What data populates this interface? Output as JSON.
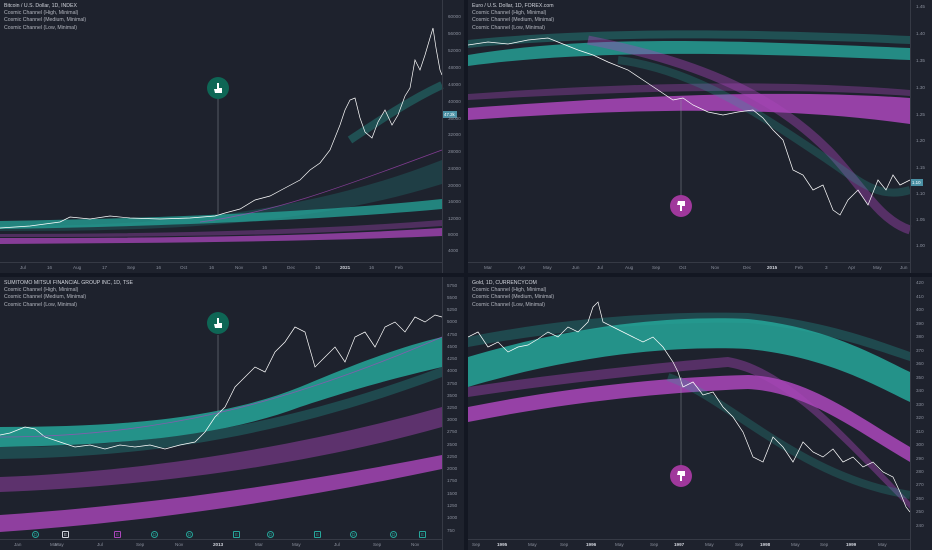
{
  "colors": {
    "bg": "#131722",
    "panel": "#1e222d",
    "teal": "#26a69a",
    "purple": "#ab47bc",
    "price": "#ffffff",
    "hand_up": "#0e6655",
    "hand_down": "#a0389c"
  },
  "panels": [
    {
      "legend": {
        "title": "Bitcoin / U.S. Dollar, 1D, INDEX",
        "lines": [
          "Cosmic Channel (High, Minimal)",
          "Cosmic Channel (Medium, Minimal)",
          "Cosmic Channel (Low, Minimal)"
        ]
      },
      "price_ticks": [
        "60000",
        "56000",
        "52000",
        "48000",
        "44000",
        "40000",
        "36000",
        "32000",
        "28000",
        "24000",
        "20000",
        "16000",
        "12000",
        "8000",
        "4000"
      ],
      "time_ticks": [
        {
          "t": "Jul"
        },
        {
          "t": "16"
        },
        {
          "t": "Aug"
        },
        {
          "t": "17"
        },
        {
          "t": "Sep"
        },
        {
          "t": "16"
        },
        {
          "t": "Oct"
        },
        {
          "t": "16"
        },
        {
          "t": "Nov"
        },
        {
          "t": "16"
        },
        {
          "t": "Dec"
        },
        {
          "t": "16"
        },
        {
          "t": "2021",
          "bold": true
        },
        {
          "t": "16"
        },
        {
          "t": "Feb"
        }
      ],
      "hand": "up",
      "last_tag": "47.2k"
    },
    {
      "legend": {
        "title": "Euro / U.S. Dollar, 1D, FOREX.com",
        "lines": [
          "Cosmic Channel (High, Minimal)",
          "Cosmic Channel (Medium, Minimal)",
          "Cosmic Channel (Low, Minimal)"
        ]
      },
      "price_ticks": [
        "1.45",
        "1.40",
        "1.35",
        "1.30",
        "1.25",
        "1.20",
        "1.15",
        "1.10",
        "1.05",
        "1.00"
      ],
      "time_ticks": [
        {
          "t": "Mar"
        },
        {
          "t": "Apr"
        },
        {
          "t": "May"
        },
        {
          "t": "Jun"
        },
        {
          "t": "Jul"
        },
        {
          "t": "Aug"
        },
        {
          "t": "Sep"
        },
        {
          "t": "Oct"
        },
        {
          "t": "Nov"
        },
        {
          "t": "Dec"
        },
        {
          "t": "2015",
          "bold": true
        },
        {
          "t": "Feb"
        },
        {
          "t": "3"
        },
        {
          "t": "Apr"
        },
        {
          "t": "May"
        },
        {
          "t": "Jun"
        }
      ],
      "hand": "down",
      "last_tag": "1.10"
    },
    {
      "legend": {
        "title": "SUMITOMO MITSUI FINANCIAL GROUP INC, 1D, TSE",
        "lines": [
          "Cosmic Channel (High, Minimal)",
          "Cosmic Channel (Medium, Minimal)",
          "Cosmic Channel (Low, Minimal)"
        ]
      },
      "price_ticks": [
        "5750",
        "5500",
        "5250",
        "5000",
        "4750",
        "4500",
        "4250",
        "4000",
        "3750",
        "3500",
        "3250",
        "3000",
        "2750",
        "2500",
        "2250",
        "2000",
        "1750",
        "1500",
        "1250",
        "1000",
        "750"
      ],
      "time_ticks": [
        {
          "t": "Jan"
        },
        {
          "t": "Mar"
        },
        {
          "t": "May"
        },
        {
          "t": "Jul"
        },
        {
          "t": "Sep"
        },
        {
          "t": "Nov"
        },
        {
          "t": "2013",
          "bold": true
        },
        {
          "t": "Mar"
        },
        {
          "t": "May"
        },
        {
          "t": "Jul"
        },
        {
          "t": "Sep"
        },
        {
          "t": "Nov"
        }
      ],
      "hand": "up",
      "events": [
        "D",
        "E",
        "E",
        "D",
        "D",
        "E",
        "D",
        "E",
        "D",
        "D",
        "E"
      ]
    },
    {
      "legend": {
        "title": "Gold, 1D, CURRENCYCOM",
        "lines": [
          "Cosmic Channel (High, Minimal)",
          "Cosmic Channel (Medium, Minimal)",
          "Cosmic Channel (Low, Minimal)"
        ]
      },
      "price_ticks": [
        "420",
        "410",
        "400",
        "390",
        "380",
        "370",
        "360",
        "350",
        "340",
        "330",
        "320",
        "310",
        "300",
        "290",
        "280",
        "270",
        "260",
        "250",
        "240"
      ],
      "time_ticks": [
        {
          "t": "Sep"
        },
        {
          "t": "1995",
          "bold": true
        },
        {
          "t": "May"
        },
        {
          "t": "Sep"
        },
        {
          "t": "1996",
          "bold": true
        },
        {
          "t": "May"
        },
        {
          "t": "Sep"
        },
        {
          "t": "1997",
          "bold": true
        },
        {
          "t": "May"
        },
        {
          "t": "Sep"
        },
        {
          "t": "1998",
          "bold": true
        },
        {
          "t": "May"
        },
        {
          "t": "Sep"
        },
        {
          "t": "1999",
          "bold": true
        },
        {
          "t": "May"
        }
      ],
      "hand": "down"
    }
  ]
}
